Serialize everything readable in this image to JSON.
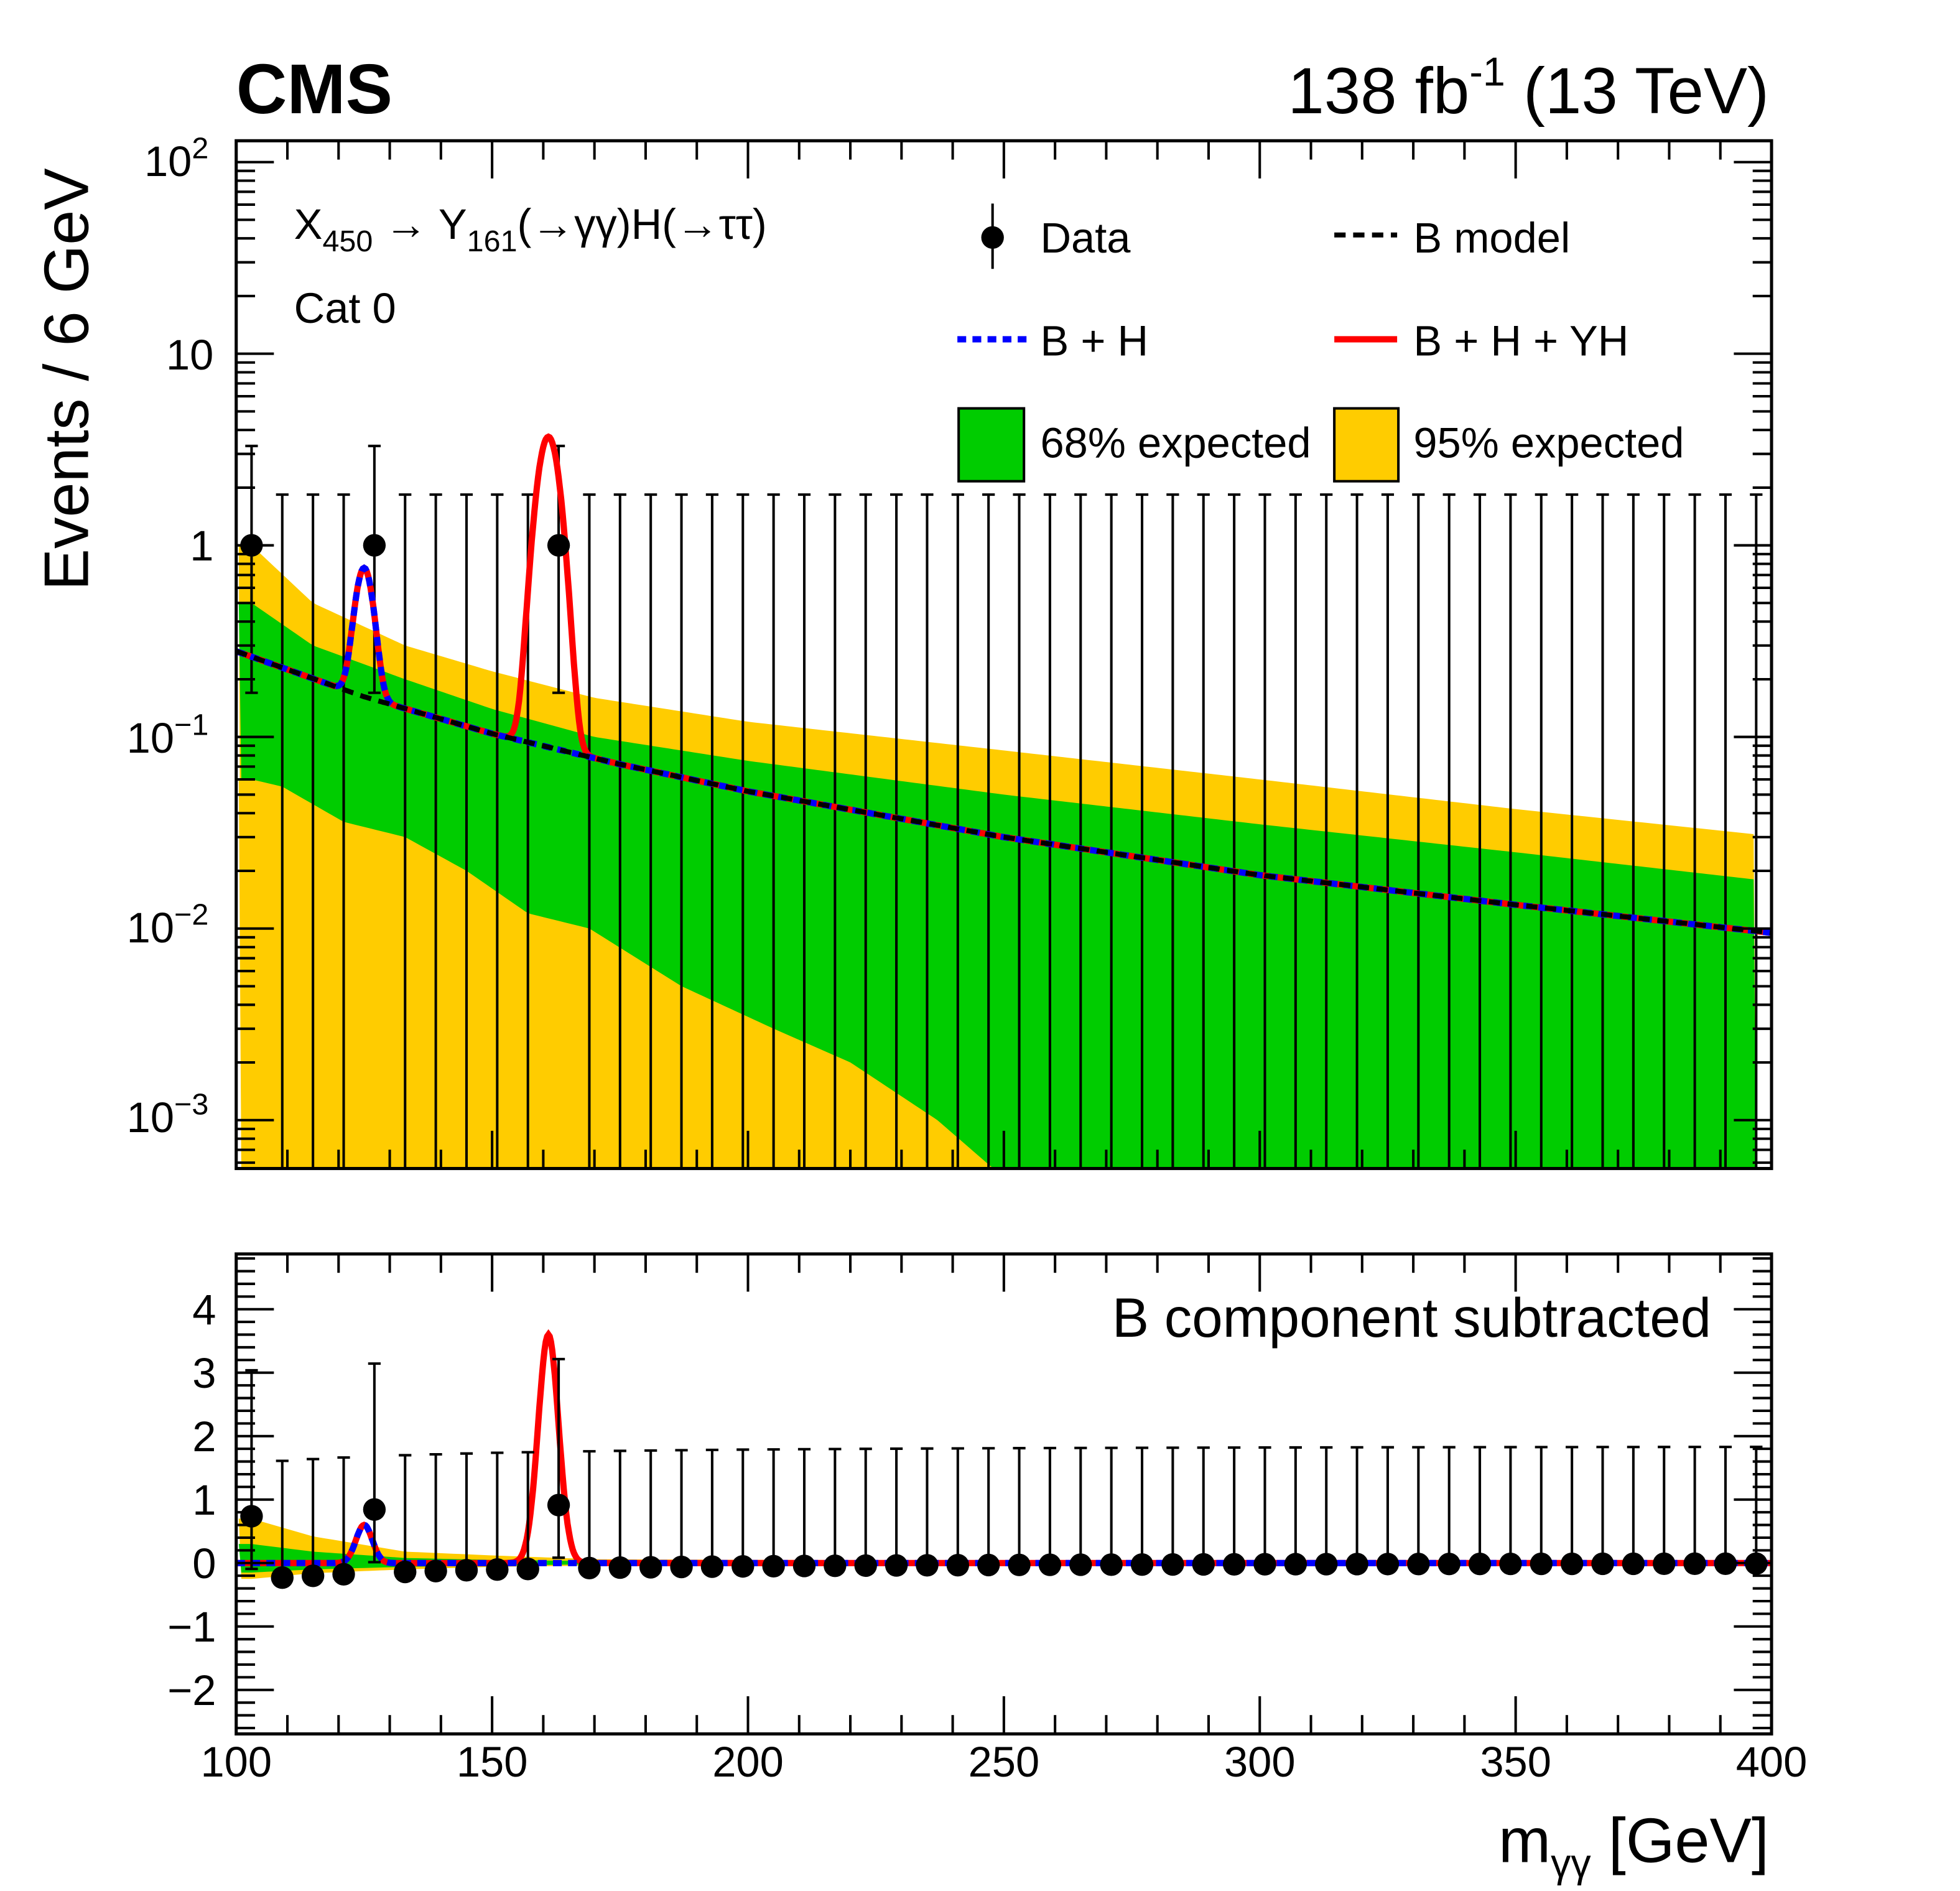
{
  "header": {
    "experiment": "CMS",
    "lumi_value": "138 fb",
    "lumi_exp": "-1",
    "energy": " (13 TeV)"
  },
  "chart_data": [
    {
      "type": "scatter",
      "panel": "upper",
      "ylabel": "Events / 6 GeV",
      "yscale": "log",
      "ylim": [
        0.0005,
        130
      ],
      "xlim": [
        100,
        400
      ],
      "ytick_labels": [
        {
          "base": "10",
          "exp": "2"
        },
        {
          "base": "10",
          "exp": ""
        },
        {
          "base": "1",
          "exp": ""
        },
        {
          "base": "10",
          "exp": "−1"
        },
        {
          "base": "10",
          "exp": "−2"
        },
        {
          "base": "10",
          "exp": "−3"
        }
      ],
      "ytick_values": [
        100,
        10,
        1,
        0.1,
        0.01,
        0.001
      ],
      "annotation": {
        "x": "X",
        "x_sub": "450",
        "arrow_y": " → Y",
        "y_sub": "161",
        "decay": "(→γγ)H(→ττ)",
        "category": "Cat 0"
      },
      "legend": {
        "placement": "top-right",
        "data": "Data",
        "b_model": "B model",
        "b_h": "B + H",
        "b_h_yh": "B + H + YH",
        "band68": "68% expected",
        "band95": "95% expected"
      },
      "bin_width": 6,
      "data_x": [
        103,
        109,
        115,
        121,
        127,
        133,
        139,
        145,
        151,
        157,
        163,
        169,
        175,
        181,
        187,
        193,
        199,
        205,
        211,
        217,
        223,
        229,
        235,
        241,
        247,
        253,
        259,
        265,
        271,
        277,
        283,
        289,
        295,
        301,
        307,
        313,
        319,
        325,
        331,
        337,
        343,
        349,
        355,
        361,
        367,
        373,
        379,
        385,
        391,
        397
      ],
      "data_y": [
        1,
        0,
        0,
        0,
        1,
        0,
        0,
        0,
        0,
        0,
        1,
        0,
        0,
        0,
        0,
        0,
        0,
        0,
        0,
        0,
        0,
        0,
        0,
        0,
        0,
        0,
        0,
        0,
        0,
        0,
        0,
        0,
        0,
        0,
        0,
        0,
        0,
        0,
        0,
        0,
        0,
        0,
        0,
        0,
        0,
        0,
        0,
        0,
        0,
        0
      ],
      "err_up_zero": 1.84,
      "err_one": [
        0.17,
        3.3
      ],
      "b_model": {
        "x": [
          100,
          125,
          150,
          175,
          200,
          250,
          300,
          350,
          400
        ],
        "y": [
          0.28,
          0.162,
          0.104,
          0.072,
          0.052,
          0.03,
          0.019,
          0.0133,
          0.0095
        ]
      },
      "h_peak": {
        "mass": 125,
        "amplitude": 0.6,
        "width": 1.6
      },
      "yh_peak": {
        "mass": 161,
        "amplitude": 3.6,
        "width": 2.0
      },
      "band95_high": {
        "x": [
          103,
          115,
          133,
          150,
          170,
          200,
          250,
          300,
          350,
          397
        ],
        "y": [
          1.0,
          0.5,
          0.3,
          0.22,
          0.16,
          0.12,
          0.085,
          0.06,
          0.042,
          0.031
        ]
      },
      "band68_high": {
        "x": [
          103,
          115,
          133,
          150,
          170,
          200,
          250,
          300,
          350,
          397
        ],
        "y": [
          0.5,
          0.3,
          0.2,
          0.14,
          0.1,
          0.075,
          0.05,
          0.035,
          0.025,
          0.018
        ]
      },
      "band68_low": {
        "x": [
          103,
          109,
          121,
          133,
          145,
          157,
          169,
          187,
          205,
          220,
          237,
          250
        ],
        "y": [
          0.06,
          0.055,
          0.036,
          0.03,
          0.02,
          0.012,
          0.01,
          0.005,
          0.003,
          0.002,
          0.001,
          0.0005
        ]
      },
      "colors": {
        "band68": "#00cc00",
        "band95": "#ffcc00",
        "b_h": "#0000ff",
        "b_h_yh": "#ff0000",
        "b_model": "#000000",
        "data": "#000000"
      }
    },
    {
      "type": "scatter",
      "panel": "lower",
      "annotation": "B component subtracted",
      "xlabel_main": "m",
      "xlabel_sub": "γγ",
      "xlabel_unit": " [GeV]",
      "xlim": [
        100,
        400
      ],
      "ylim": [
        -2.7,
        4.85
      ],
      "xtick_labels": [
        "100",
        "150",
        "200",
        "250",
        "300",
        "350",
        "400"
      ],
      "xtick_values": [
        100,
        150,
        200,
        250,
        300,
        350,
        400
      ],
      "ytick_labels": [
        "−2",
        "−1",
        "0",
        "1",
        "2",
        "3",
        "4"
      ],
      "ytick_values": [
        -2,
        -1,
        0,
        1,
        2,
        3,
        4
      ],
      "band95_high": {
        "x": [
          103,
          115,
          133,
          150,
          170
        ],
        "y": [
          0.7,
          0.42,
          0.18,
          0.12,
          0.06
        ]
      },
      "band68_high": {
        "x": [
          103,
          115,
          133,
          150,
          170
        ],
        "y": [
          0.3,
          0.18,
          0.08,
          0.05,
          0.03
        ]
      },
      "band68_low": {
        "x": [
          103,
          115,
          133,
          150,
          170
        ],
        "y": [
          -0.15,
          -0.1,
          -0.06,
          -0.04,
          -0.02
        ]
      },
      "band95_low": {
        "x": [
          103,
          115,
          133,
          150,
          170
        ],
        "y": [
          -0.25,
          -0.16,
          -0.1,
          -0.06,
          -0.04
        ]
      }
    }
  ]
}
